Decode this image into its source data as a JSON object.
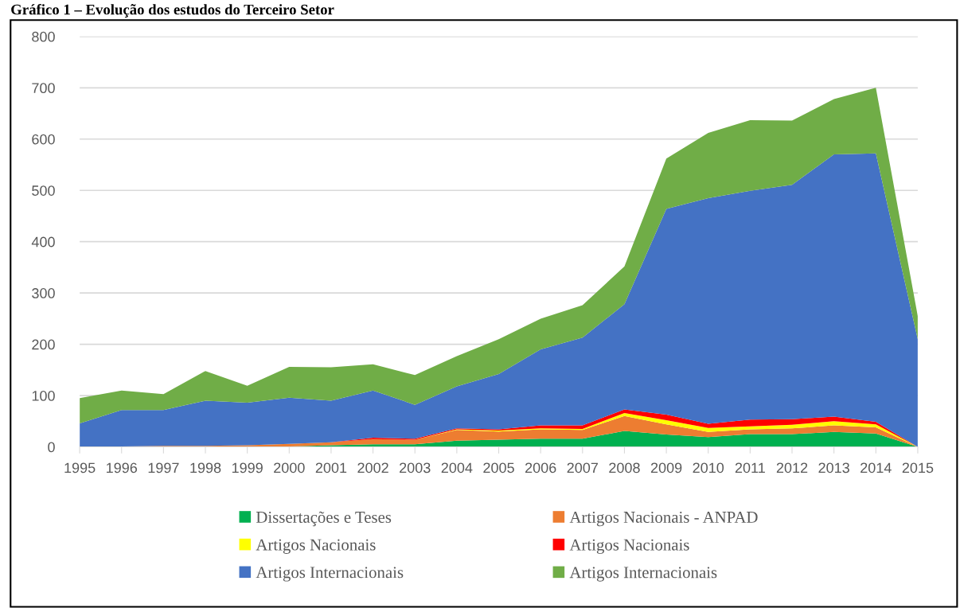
{
  "chart_data": {
    "type": "area",
    "stacked": true,
    "title": "Gráfico 1 – Evolução dos estudos do Terceiro Setor",
    "categories": [
      "1995",
      "1996",
      "1997",
      "1998",
      "1999",
      "2000",
      "2001",
      "2002",
      "2003",
      "2004",
      "2005",
      "2006",
      "2007",
      "2008",
      "2009",
      "2010",
      "2011",
      "2012",
      "2013",
      "2014",
      "2015"
    ],
    "series": [
      {
        "name": "Dissertações e Teses",
        "color": "#00b050",
        "values": [
          0,
          0,
          0,
          0,
          0,
          1,
          3,
          5,
          5,
          12,
          14,
          16,
          16,
          31,
          24,
          19,
          25,
          25,
          29,
          26,
          0
        ]
      },
      {
        "name": "Artigos Nacionais - ANPAD",
        "color": "#ed7d31",
        "values": [
          1,
          1,
          2,
          2,
          3,
          5,
          6,
          10,
          9,
          21,
          16,
          18,
          17,
          29,
          20,
          10,
          9,
          11,
          13,
          12,
          0
        ]
      },
      {
        "name": "Artigos Nacionais",
        "color": "#ffff00",
        "values": [
          0,
          0,
          0,
          0,
          0,
          0,
          0,
          0,
          0,
          1,
          2,
          2,
          2,
          6,
          8,
          8,
          6,
          7,
          8,
          6,
          0
        ]
      },
      {
        "name": "Artigos Nacionais",
        "color": "#ff0000",
        "values": [
          0,
          0,
          0,
          0,
          0,
          0,
          0,
          3,
          2,
          2,
          2,
          6,
          7,
          7,
          11,
          8,
          13,
          11,
          9,
          5,
          0
        ]
      },
      {
        "name": "Artigos Internacionais",
        "color": "#4472c4",
        "values": [
          45,
          71,
          70,
          88,
          83,
          90,
          81,
          92,
          66,
          82,
          108,
          148,
          171,
          205,
          401,
          440,
          446,
          457,
          511,
          523,
          210
        ]
      },
      {
        "name": "Artigos Internacionais",
        "color": "#70ad47",
        "values": [
          49,
          38,
          31,
          58,
          33,
          60,
          65,
          51,
          58,
          59,
          68,
          60,
          63,
          74,
          98,
          127,
          138,
          125,
          108,
          128,
          45
        ]
      }
    ],
    "ylim": [
      0,
      800
    ],
    "yticks": [
      0,
      100,
      200,
      300,
      400,
      500,
      600,
      700,
      800
    ],
    "grid": "y",
    "legend": "bottom"
  }
}
